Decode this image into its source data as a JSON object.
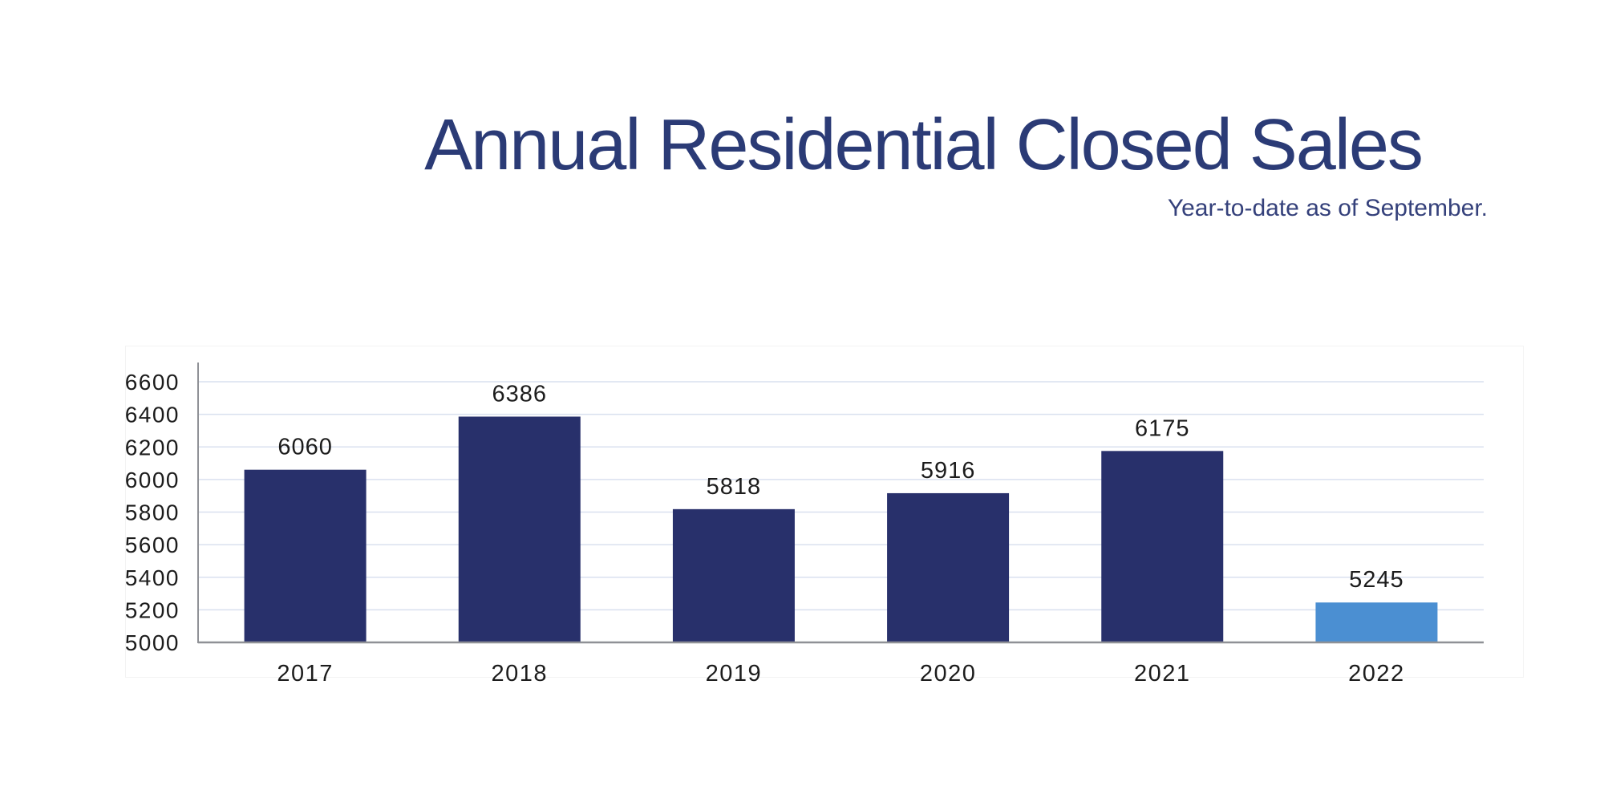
{
  "page": {
    "title": "Annual Residential Closed Sales",
    "subtitle": "Year-to-date as of September."
  },
  "colors": {
    "title": "#2b3b76",
    "subtitle": "#35417b",
    "bar_primary": "#28306b",
    "bar_highlight": "#4b8fd2",
    "gridline": "#d9e0ef",
    "axis": "#8f9196",
    "label": "#1c1c1c"
  },
  "chart_data": {
    "type": "bar",
    "title": "Annual Residential Closed Sales",
    "subtitle": "Year-to-date as of September.",
    "categories": [
      "2017",
      "2018",
      "2019",
      "2020",
      "2021",
      "2022"
    ],
    "values": [
      6060,
      6386,
      5818,
      5916,
      6175,
      5245
    ],
    "data_labels": [
      "6060",
      "6386",
      "5818",
      "5916",
      "6175",
      "5245"
    ],
    "bar_colors": [
      "#28306b",
      "#28306b",
      "#28306b",
      "#28306b",
      "#28306b",
      "#4b8fd2"
    ],
    "yticks": [
      6600,
      6400,
      6200,
      6000,
      5800,
      5600,
      5400,
      5200,
      5000
    ],
    "ylim": [
      5000,
      6750
    ],
    "xlabel": "",
    "ylabel": "",
    "grid": true,
    "legend": "none"
  }
}
